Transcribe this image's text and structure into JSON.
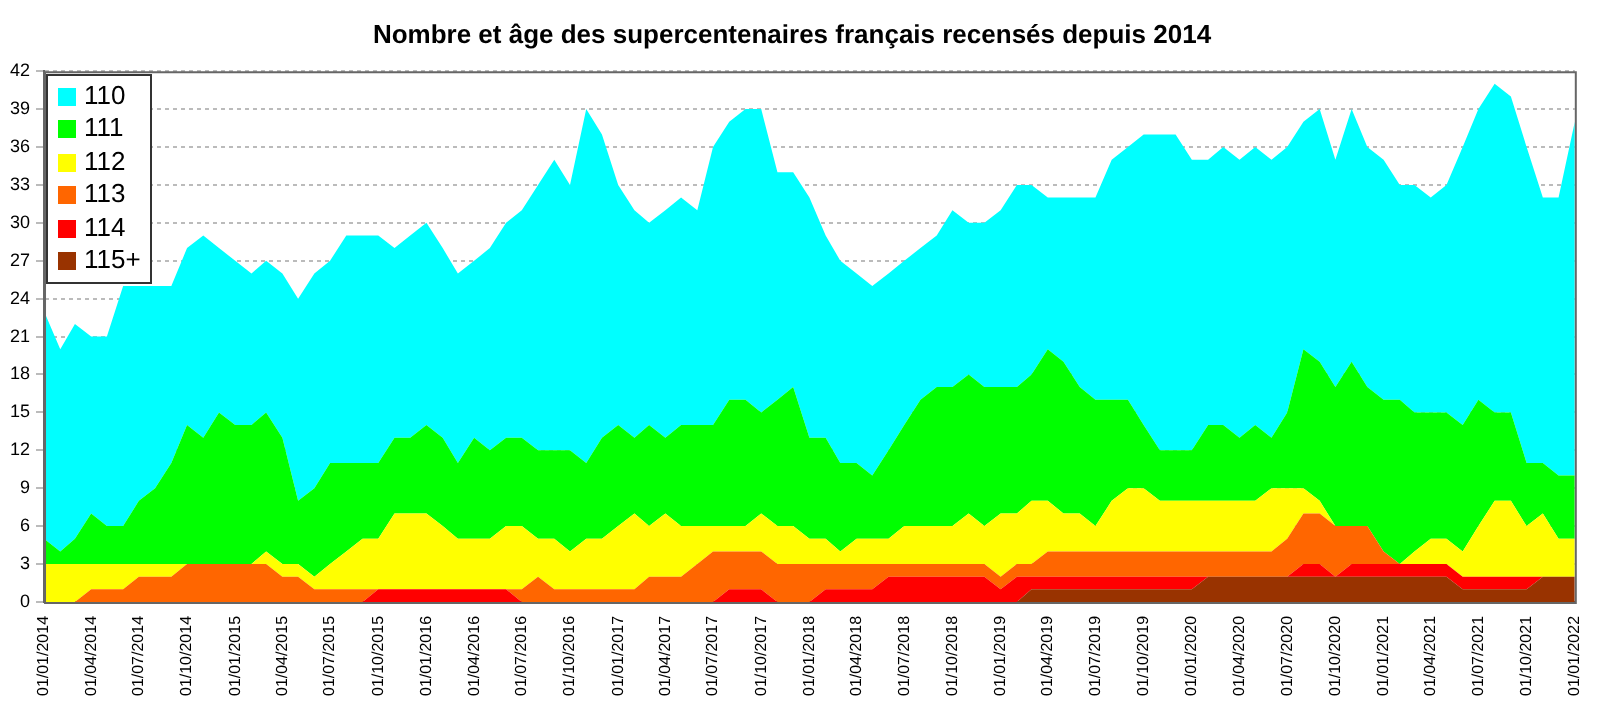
{
  "chart_data": {
    "type": "area",
    "title": "Nombre et âge des supercentenaires français recensés depuis 2014",
    "stacked": true,
    "legend": "top left",
    "grid": "y",
    "x": [
      "2014-01",
      "2014-02",
      "2014-03",
      "2014-04",
      "2014-05",
      "2014-06",
      "2014-07",
      "2014-08",
      "2014-09",
      "2014-10",
      "2014-11",
      "2014-12",
      "2015-01",
      "2015-02",
      "2015-03",
      "2015-04",
      "2015-05",
      "2015-06",
      "2015-07",
      "2015-08",
      "2015-09",
      "2015-10",
      "2015-11",
      "2015-12",
      "2016-01",
      "2016-02",
      "2016-03",
      "2016-04",
      "2016-05",
      "2016-06",
      "2016-07",
      "2016-08",
      "2016-09",
      "2016-10",
      "2016-11",
      "2016-12",
      "2017-01",
      "2017-02",
      "2017-03",
      "2017-04",
      "2017-05",
      "2017-06",
      "2017-07",
      "2017-08",
      "2017-09",
      "2017-10",
      "2017-11",
      "2017-12",
      "2018-01",
      "2018-02",
      "2018-03",
      "2018-04",
      "2018-05",
      "2018-06",
      "2018-07",
      "2018-08",
      "2018-09",
      "2018-10",
      "2018-11",
      "2018-12",
      "2019-01",
      "2019-02",
      "2019-03",
      "2019-04",
      "2019-05",
      "2019-06",
      "2019-07",
      "2019-08",
      "2019-09",
      "2019-10",
      "2019-11",
      "2019-12",
      "2020-01",
      "2020-02",
      "2020-03",
      "2020-04",
      "2020-05",
      "2020-06",
      "2020-07",
      "2020-08",
      "2020-09",
      "2020-10",
      "2020-11",
      "2020-12",
      "2021-01",
      "2021-02",
      "2021-03",
      "2021-04",
      "2021-05",
      "2021-06",
      "2021-07",
      "2021-08",
      "2021-09",
      "2021-10",
      "2021-11",
      "2021-12",
      "2022-01"
    ],
    "series": [
      {
        "name": "115+",
        "color": "#993300",
        "values": [
          0,
          0,
          0,
          0,
          0,
          0,
          0,
          0,
          0,
          0,
          0,
          0,
          0,
          0,
          0,
          0,
          0,
          0,
          0,
          0,
          0,
          0,
          0,
          0,
          0,
          0,
          0,
          0,
          0,
          0,
          0,
          0,
          0,
          0,
          0,
          0,
          0,
          0,
          0,
          0,
          0,
          0,
          0,
          0,
          0,
          0,
          0,
          0,
          0,
          0,
          0,
          0,
          0,
          0,
          0,
          0,
          0,
          0,
          0,
          0,
          0,
          0,
          1,
          1,
          1,
          1,
          1,
          1,
          1,
          1,
          1,
          1,
          1,
          2,
          2,
          2,
          2,
          2,
          2,
          2,
          2,
          2,
          2,
          2,
          2,
          2,
          2,
          2,
          2,
          1,
          1,
          1,
          1,
          1,
          2,
          2,
          2
        ]
      },
      {
        "name": "114",
        "color": "#ff0000",
        "values": [
          0,
          0,
          0,
          0,
          0,
          0,
          0,
          0,
          0,
          0,
          0,
          0,
          0,
          0,
          0,
          0,
          0,
          0,
          0,
          0,
          0,
          1,
          1,
          1,
          1,
          1,
          1,
          1,
          1,
          1,
          0,
          0,
          0,
          0,
          0,
          0,
          0,
          0,
          0,
          0,
          0,
          0,
          0,
          1,
          1,
          1,
          0,
          0,
          0,
          1,
          1,
          1,
          1,
          2,
          2,
          2,
          2,
          2,
          2,
          2,
          1,
          2,
          1,
          1,
          1,
          1,
          1,
          1,
          1,
          1,
          1,
          1,
          1,
          0,
          0,
          0,
          0,
          0,
          0,
          1,
          1,
          0,
          1,
          1,
          1,
          1,
          1,
          1,
          1,
          1,
          1,
          1,
          1,
          1,
          0,
          0,
          0
        ]
      },
      {
        "name": "113",
        "color": "#ff6600",
        "values": [
          0,
          0,
          0,
          1,
          1,
          1,
          2,
          2,
          2,
          3,
          3,
          3,
          3,
          3,
          3,
          2,
          2,
          1,
          1,
          1,
          1,
          0,
          0,
          0,
          0,
          0,
          0,
          0,
          0,
          0,
          1,
          2,
          1,
          1,
          1,
          1,
          1,
          1,
          2,
          2,
          2,
          3,
          4,
          3,
          3,
          3,
          3,
          3,
          3,
          2,
          2,
          2,
          2,
          1,
          1,
          1,
          1,
          1,
          1,
          1,
          1,
          1,
          1,
          2,
          2,
          2,
          2,
          2,
          2,
          2,
          2,
          2,
          2,
          2,
          2,
          2,
          2,
          2,
          3,
          4,
          4,
          4,
          3,
          3,
          1,
          0,
          0,
          0,
          0,
          0,
          0,
          0,
          0,
          0,
          0,
          0,
          0
        ]
      },
      {
        "name": "112",
        "color": "#ffff00",
        "values": [
          3,
          3,
          3,
          2,
          2,
          2,
          1,
          1,
          1,
          0,
          0,
          0,
          0,
          0,
          1,
          1,
          1,
          1,
          2,
          3,
          4,
          4,
          6,
          6,
          6,
          5,
          4,
          4,
          4,
          5,
          5,
          3,
          4,
          3,
          4,
          4,
          5,
          6,
          4,
          5,
          4,
          3,
          2,
          2,
          2,
          3,
          3,
          3,
          2,
          2,
          1,
          2,
          2,
          2,
          3,
          3,
          3,
          3,
          4,
          3,
          5,
          4,
          5,
          4,
          3,
          3,
          2,
          4,
          5,
          5,
          4,
          4,
          4,
          4,
          4,
          4,
          4,
          5,
          4,
          2,
          1,
          0,
          0,
          0,
          0,
          0,
          1,
          2,
          2,
          2,
          4,
          6,
          6,
          4,
          5,
          3,
          3
        ]
      },
      {
        "name": "111",
        "color": "#00ff00",
        "values": [
          2,
          1,
          2,
          4,
          3,
          3,
          5,
          6,
          8,
          11,
          10,
          12,
          11,
          11,
          11,
          10,
          5,
          7,
          8,
          7,
          6,
          6,
          6,
          6,
          7,
          7,
          6,
          8,
          7,
          7,
          7,
          7,
          7,
          8,
          6,
          8,
          8,
          6,
          8,
          6,
          8,
          8,
          8,
          10,
          10,
          8,
          10,
          11,
          8,
          8,
          7,
          6,
          5,
          7,
          8,
          10,
          11,
          11,
          11,
          11,
          10,
          10,
          10,
          12,
          12,
          10,
          10,
          8,
          7,
          5,
          4,
          4,
          4,
          6,
          6,
          5,
          6,
          4,
          6,
          11,
          11,
          11,
          13,
          11,
          12,
          13,
          11,
          10,
          10,
          10,
          10,
          7,
          7,
          5,
          4,
          5,
          5
        ]
      },
      {
        "name": "110",
        "color": "#00ffff",
        "values": [
          18,
          16,
          17,
          14,
          15,
          19,
          17,
          16,
          14,
          14,
          16,
          13,
          13,
          12,
          12,
          13,
          16,
          17,
          16,
          18,
          18,
          18,
          15,
          16,
          16,
          15,
          15,
          14,
          16,
          17,
          18,
          21,
          23,
          21,
          28,
          24,
          19,
          18,
          16,
          18,
          18,
          17,
          22,
          22,
          23,
          24,
          18,
          17,
          19,
          16,
          16,
          15,
          15,
          14,
          13,
          12,
          12,
          14,
          12,
          13,
          14,
          16,
          15,
          12,
          13,
          15,
          16,
          19,
          20,
          23,
          25,
          25,
          23,
          21,
          22,
          22,
          22,
          22,
          21,
          18,
          20,
          18,
          20,
          19,
          19,
          17,
          18,
          17,
          18,
          22,
          23,
          26,
          25,
          25,
          21,
          22,
          28
        ]
      }
    ],
    "xlim": [
      "2014-01-01",
      "2022-01-01"
    ],
    "xticks": [
      {
        "value": "2014-01-01",
        "label": "01/01/2014"
      },
      {
        "value": "2014-04-01",
        "label": "01/04/2014"
      },
      {
        "value": "2014-07-01",
        "label": "01/07/2014"
      },
      {
        "value": "2014-10-01",
        "label": "01/10/2014"
      },
      {
        "value": "2015-01-01",
        "label": "01/01/2015"
      },
      {
        "value": "2015-04-01",
        "label": "01/04/2015"
      },
      {
        "value": "2015-07-01",
        "label": "01/07/2015"
      },
      {
        "value": "2015-10-01",
        "label": "01/10/2015"
      },
      {
        "value": "2016-01-01",
        "label": "01/01/2016"
      },
      {
        "value": "2016-04-01",
        "label": "01/04/2016"
      },
      {
        "value": "2016-07-01",
        "label": "01/07/2016"
      },
      {
        "value": "2016-10-01",
        "label": "01/10/2016"
      },
      {
        "value": "2017-01-01",
        "label": "01/01/2017"
      },
      {
        "value": "2017-04-01",
        "label": "01/04/2017"
      },
      {
        "value": "2017-07-01",
        "label": "01/07/2017"
      },
      {
        "value": "2017-10-01",
        "label": "01/10/2017"
      },
      {
        "value": "2018-01-01",
        "label": "01/01/2018"
      },
      {
        "value": "2018-04-01",
        "label": "01/04/2018"
      },
      {
        "value": "2018-07-01",
        "label": "01/07/2018"
      },
      {
        "value": "2018-10-01",
        "label": "01/10/2018"
      },
      {
        "value": "2019-01-01",
        "label": "01/01/2019"
      },
      {
        "value": "2019-04-01",
        "label": "01/04/2019"
      },
      {
        "value": "2019-07-01",
        "label": "01/07/2019"
      },
      {
        "value": "2019-10-01",
        "label": "01/10/2019"
      },
      {
        "value": "2020-01-01",
        "label": "01/01/2020"
      },
      {
        "value": "2020-04-01",
        "label": "01/04/2020"
      },
      {
        "value": "2020-07-01",
        "label": "01/07/2020"
      },
      {
        "value": "2020-10-01",
        "label": "01/10/2020"
      },
      {
        "value": "2021-01-01",
        "label": "01/01/2021"
      },
      {
        "value": "2021-04-01",
        "label": "01/04/2021"
      },
      {
        "value": "2021-07-01",
        "label": "01/07/2021"
      },
      {
        "value": "2021-10-01",
        "label": "01/10/2021"
      },
      {
        "value": "2022-01-01",
        "label": "01/01/2022"
      }
    ],
    "ylim": [
      0,
      42
    ],
    "yticks": [
      0,
      3,
      6,
      9,
      12,
      15,
      18,
      21,
      24,
      27,
      30,
      33,
      36,
      39,
      42
    ]
  }
}
